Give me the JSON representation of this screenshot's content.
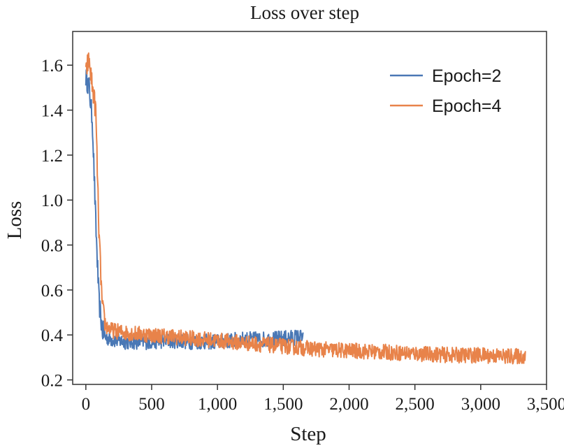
{
  "chart_data": {
    "type": "line",
    "title": "Loss over step",
    "xlabel": "Step",
    "ylabel": "Loss",
    "xlim": [
      -100,
      3500
    ],
    "ylim": [
      0.18,
      1.75
    ],
    "xticks": [
      0,
      500,
      1000,
      1500,
      2000,
      2500,
      3000,
      3500
    ],
    "xtick_labels": [
      "0",
      "500",
      "1,000",
      "1,500",
      "2,000",
      "2,500",
      "3,000",
      "3,500"
    ],
    "yticks": [
      0.2,
      0.4,
      0.6,
      0.8,
      1.0,
      1.2,
      1.4,
      1.6
    ],
    "ytick_labels": [
      "0.2",
      "0.4",
      "0.6",
      "0.8",
      "1.0",
      "1.2",
      "1.4",
      "1.6"
    ],
    "grid": false,
    "legend_position": "top-right",
    "series": [
      {
        "name": "Epoch=2",
        "color": "#4a78b5",
        "x": [
          0,
          25,
          50,
          75,
          100,
          125,
          150,
          200,
          300,
          400,
          500,
          600,
          700,
          800,
          900,
          1000,
          1100,
          1200,
          1300,
          1400,
          1500,
          1600,
          1650
        ],
        "y": [
          1.55,
          1.5,
          1.35,
          0.9,
          0.55,
          0.42,
          0.39,
          0.38,
          0.37,
          0.37,
          0.37,
          0.375,
          0.375,
          0.37,
          0.37,
          0.37,
          0.375,
          0.38,
          0.38,
          0.38,
          0.385,
          0.39,
          0.39
        ]
      },
      {
        "name": "Epoch=4",
        "color": "#e8834a",
        "x": [
          0,
          10,
          25,
          50,
          75,
          100,
          125,
          150,
          200,
          300,
          400,
          500,
          600,
          700,
          800,
          900,
          1000,
          1200,
          1400,
          1600,
          1800,
          2000,
          2200,
          2400,
          2600,
          2800,
          3000,
          3200,
          3340
        ],
        "y": [
          1.55,
          1.6,
          1.62,
          1.5,
          1.4,
          0.85,
          0.52,
          0.44,
          0.42,
          0.41,
          0.405,
          0.4,
          0.395,
          0.39,
          0.385,
          0.38,
          0.375,
          0.365,
          0.355,
          0.345,
          0.335,
          0.33,
          0.325,
          0.32,
          0.315,
          0.31,
          0.31,
          0.305,
          0.305
        ]
      }
    ]
  }
}
